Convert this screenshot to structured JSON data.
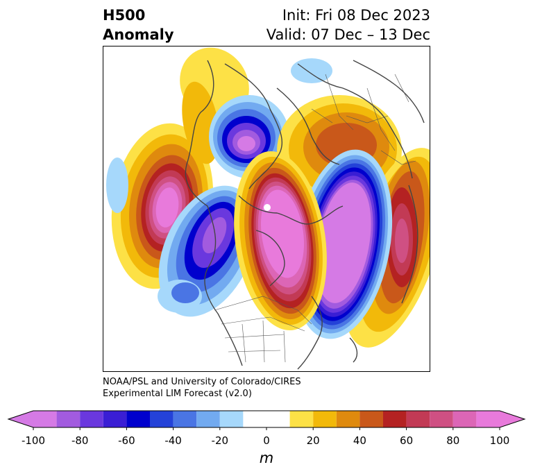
{
  "header": {
    "title_line1": "H500",
    "title_line2": "Anomaly",
    "init": "Init: Fri 08 Dec 2023",
    "valid": "Valid: 07 Dec – 13 Dec"
  },
  "credit": {
    "line1": "NOAA/PSL and University of Colorado/CIRES",
    "line2": "Experimental LIM Forecast (v2.0)"
  },
  "colorbar": {
    "units": "m",
    "ticks": [
      "-100",
      "-80",
      "-60",
      "-40",
      "-20",
      "0",
      "20",
      "40",
      "60",
      "80",
      "100"
    ],
    "levels": [
      -100,
      -90,
      -80,
      -70,
      -60,
      -50,
      -40,
      -30,
      -20,
      -10,
      10,
      20,
      30,
      40,
      50,
      60,
      70,
      80,
      90,
      100
    ],
    "colors": [
      "#d57ae5",
      "#a25bdf",
      "#6a38de",
      "#3a1ed4",
      "#0000cd",
      "#2442d8",
      "#4a75e4",
      "#72aaf0",
      "#a6d8fb",
      "#ffffff",
      "#fde146",
      "#f2b90a",
      "#df8a0e",
      "#c9581a",
      "#b42222",
      "#c23a55",
      "#cf5083",
      "#dc66b6",
      "#e87adb"
    ],
    "under_color": "#d57ae5",
    "over_color": "#e87adb"
  },
  "map": {
    "projection": "north-polar-stereographic",
    "features": [
      "coastlines",
      "country-borders",
      "state-borders"
    ]
  }
}
